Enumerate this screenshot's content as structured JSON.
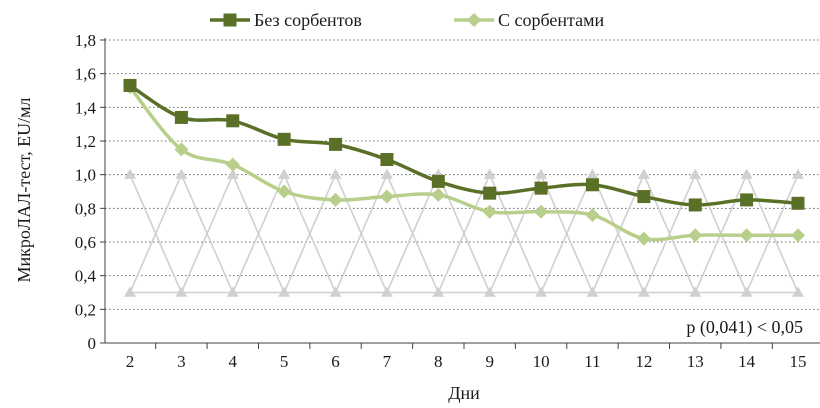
{
  "chart_data": {
    "type": "line",
    "title": "",
    "xlabel": "Дни",
    "ylabel": "МикроЛАЛ-тест, EU/мл",
    "categories": [
      "2",
      "3",
      "4",
      "5",
      "6",
      "7",
      "8",
      "9",
      "10",
      "11",
      "12",
      "13",
      "14",
      "15"
    ],
    "ylim": [
      0,
      1.8
    ],
    "yticks": [
      "0",
      "0,2",
      "0,4",
      "0,6",
      "0,8",
      "1,0",
      "1,2",
      "1,4",
      "1,6",
      "1,8"
    ],
    "grid": "horizontal dotted",
    "legend_position": "top",
    "series": [
      {
        "name": "Без сорбентов",
        "color": "#5b7027",
        "marker": "square",
        "values": [
          1.53,
          1.34,
          1.32,
          1.21,
          1.18,
          1.09,
          0.96,
          0.89,
          0.92,
          0.94,
          0.87,
          0.82,
          0.85,
          0.83
        ]
      },
      {
        "name": "С сорбентами",
        "color": "#b7cf8a",
        "marker": "diamond",
        "values": [
          1.52,
          1.15,
          1.06,
          0.9,
          0.85,
          0.87,
          0.88,
          0.78,
          0.78,
          0.76,
          0.62,
          0.64,
          0.64,
          0.64
        ]
      }
    ],
    "reference_band": {
      "upper": 1.0,
      "lower": 0.3,
      "color": "#d0d0d0"
    },
    "annotation": "p (0,041) < 0,05"
  }
}
